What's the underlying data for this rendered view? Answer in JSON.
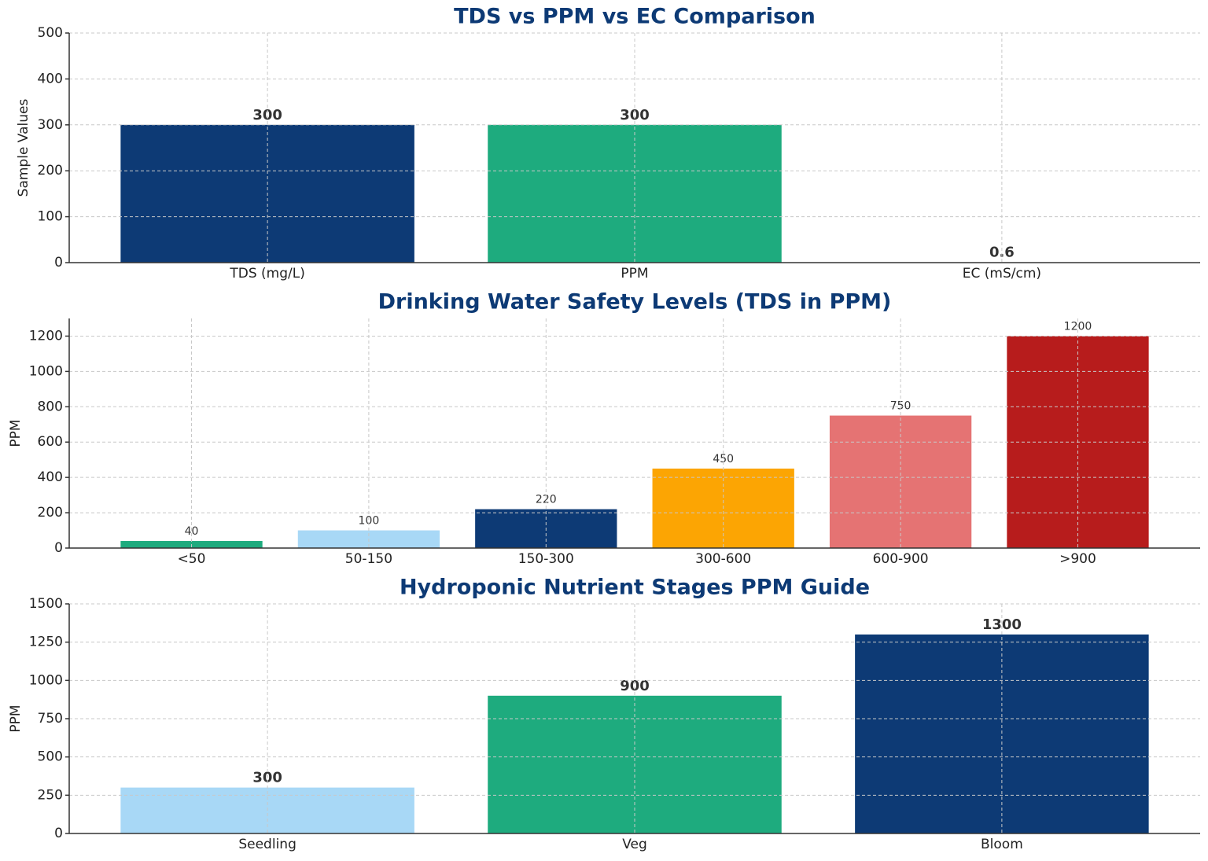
{
  "chart_data": [
    {
      "type": "bar",
      "title": "TDS vs PPM vs EC Comparison",
      "y_label": "Sample Values",
      "categories": [
        "TDS (mg/L)",
        "PPM",
        "EC (mS/cm)"
      ],
      "values": [
        300,
        300,
        0.6
      ],
      "colors": [
        "#0d3a75",
        "#1eab7e",
        "#e8a317"
      ],
      "ylim": [
        0,
        500
      ],
      "yticks": [
        0,
        100,
        200,
        300,
        400,
        500
      ],
      "grid": true
    },
    {
      "type": "bar",
      "title": "Drinking Water Safety Levels (TDS in PPM)",
      "y_label": "PPM",
      "categories": [
        "<50",
        "50-150",
        "150-300",
        "300-600",
        "600-900",
        ">900"
      ],
      "values": [
        40,
        100,
        220,
        450,
        750,
        1200
      ],
      "colors": [
        "#1eab7e",
        "#a8d8f6",
        "#0d3a75",
        "#fca503",
        "#e57373",
        "#b71c1c"
      ],
      "ylim": [
        0,
        1300
      ],
      "yticks": [
        0,
        200,
        400,
        600,
        800,
        1000,
        1200
      ],
      "grid": true
    },
    {
      "type": "bar",
      "title": "Hydroponic Nutrient Stages PPM Guide",
      "y_label": "PPM",
      "categories": [
        "Seedling",
        "Veg",
        "Bloom"
      ],
      "values": [
        300,
        900,
        1300
      ],
      "colors": [
        "#a8d8f6",
        "#1eab7e",
        "#0d3a75"
      ],
      "ylim": [
        0,
        1500
      ],
      "yticks": [
        0,
        250,
        500,
        750,
        1000,
        1250,
        1500
      ],
      "grid": true
    }
  ]
}
